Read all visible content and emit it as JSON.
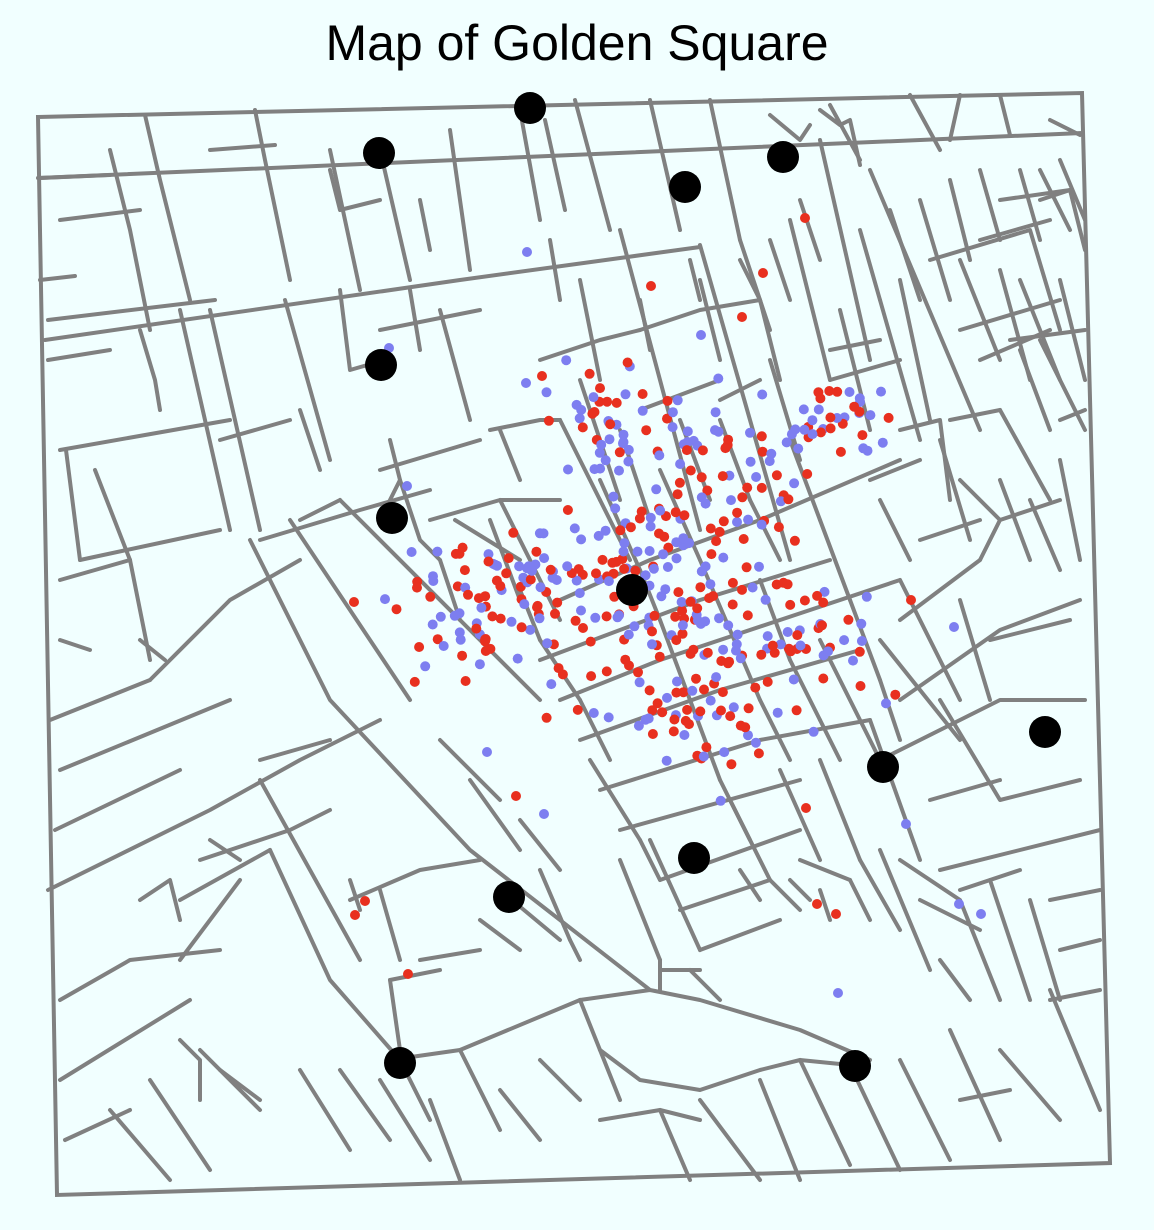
{
  "title": "Map of Golden Square",
  "colors": {
    "background": "#f1ffff",
    "streets": "#808080",
    "pump": "#000000",
    "deaths_red": "#e8301f",
    "deaths_blue": "#7d7ef0"
  },
  "legend": "none",
  "map_data": {
    "type": "point-map",
    "layers": [
      "streets",
      "pumps",
      "deaths_red",
      "deaths_blue"
    ],
    "pump_count": 13,
    "death_point_count": "approx. 560"
  }
}
